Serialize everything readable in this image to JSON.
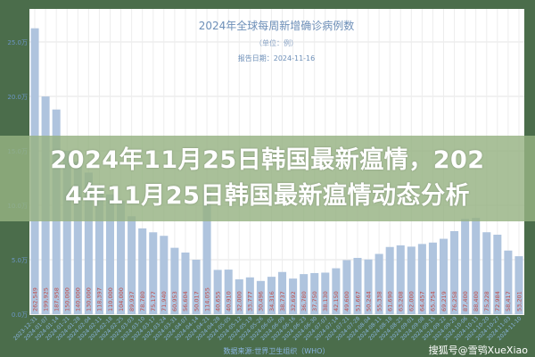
{
  "chart_data": {
    "type": "bar",
    "title": "2024年全球每周新增确诊病例数",
    "subtitle": "（单位：例）",
    "report_date": "报告日期：2024-11-16",
    "source": "数据来源:世界卫生组织（WHO）",
    "ylim": [
      0,
      250000
    ],
    "yticks": [
      0,
      50000,
      100000,
      150000,
      200000,
      250000
    ],
    "ytick_labels": [
      "0.0万",
      "5.0万",
      "10.0万",
      "15.0万",
      "20.0万",
      "25.0万"
    ],
    "grid": true,
    "categories": [
      "2023-12-31",
      "2024-01-07",
      "2024-01-14",
      "2024-01-21",
      "2024-01-28",
      "2024-02-04",
      "2024-02-11",
      "2024-02-18",
      "2024-02-25",
      "2024-03-03",
      "2024-03-10",
      "2024-03-17",
      "2024-03-24",
      "2024-03-31",
      "2024-04-07",
      "2024-04-14",
      "2024-04-21",
      "2024-04-28",
      "2024-05-05",
      "2024-05-12",
      "2024-05-19",
      "2024-05-26",
      "2024-06-02",
      "2024-06-09",
      "2024-06-16",
      "2024-06-23",
      "2024-06-30",
      "2024-07-07",
      "2024-07-14",
      "2024-07-21",
      "2024-07-28",
      "2024-08-04",
      "2024-08-11",
      "2024-08-18",
      "2024-08-25",
      "2024-09-01",
      "2024-09-08",
      "2024-09-15",
      "2024-09-22",
      "2024-09-29",
      "2024-10-06",
      "2024-10-13",
      "2024-10-20",
      "2024-10-27",
      "2024-11-03",
      "2024-11-10"
    ],
    "values": [
      262549,
      199925,
      187958,
      150000,
      140000,
      130000,
      118397,
      110000,
      104000,
      89937,
      78780,
      75177,
      71940,
      60953,
      56604,
      50017,
      114055,
      40655,
      40910,
      32000,
      33777,
      30496,
      34316,
      38737,
      32692,
      36780,
      37750,
      38130,
      42150,
      49600,
      51667,
      50244,
      55338,
      61690,
      63208,
      62000,
      64457,
      65754,
      69219,
      76258,
      87400,
      88400,
      75228,
      72984,
      58417,
      53201
    ],
    "colors": {
      "bar": "#afc4de",
      "label": "#d98a8a",
      "axis": "#6b95c4",
      "title": "#6d8fb8"
    }
  },
  "overlay": {
    "line1": "2024年11月25日韩国最新瘟情，202",
    "line2": "4年11月25日韩国最新瘟情动态分析"
  },
  "watermark": "搜狐号@雪鸮XueXiao"
}
